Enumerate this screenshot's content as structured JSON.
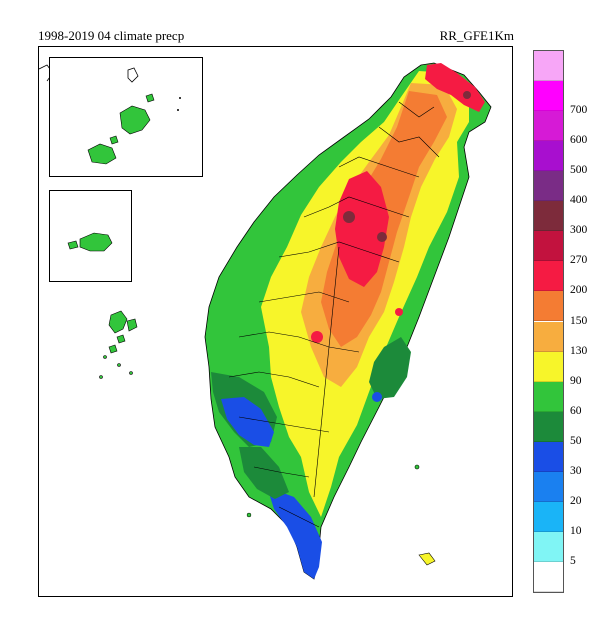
{
  "header": {
    "title_left": "1998-2019 04 climate precp",
    "title_right": "RR_GFE1Km"
  },
  "legend": {
    "items": [
      {
        "label": "",
        "color": "#f7a6f7"
      },
      {
        "label": "700",
        "color": "#ff00ff"
      },
      {
        "label": "600",
        "color": "#d61ad6"
      },
      {
        "label": "500",
        "color": "#a80fcf"
      },
      {
        "label": "400",
        "color": "#7a2c86"
      },
      {
        "label": "300",
        "color": "#7d2b3b"
      },
      {
        "label": "270",
        "color": "#c2123e"
      },
      {
        "label": "200",
        "color": "#f51b43"
      },
      {
        "label": "150",
        "color": "#f47c33"
      },
      {
        "label": "130",
        "color": "#f7ad3f"
      },
      {
        "label": "90",
        "color": "#f7f52a"
      },
      {
        "label": "60",
        "color": "#32c53b"
      },
      {
        "label": "50",
        "color": "#1c8a3a"
      },
      {
        "label": "30",
        "color": "#1a4ee6"
      },
      {
        "label": "20",
        "color": "#1a80f0"
      },
      {
        "label": "10",
        "color": "#1ab4f7"
      },
      {
        "label": "5",
        "color": "#80f5f5"
      },
      {
        "label": "",
        "color": "#ffffff"
      }
    ]
  }
}
